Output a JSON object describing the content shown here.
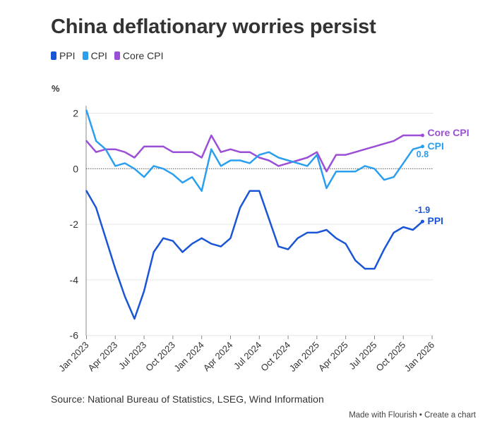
{
  "title": "China deflationary worries persist",
  "unit_label": "%",
  "source": "Source: National Bureau of Statistics, LSEG, Wind Information",
  "credit": {
    "made_with": "Made with Flourish",
    "separator": " • ",
    "create": "Create a chart"
  },
  "colors": {
    "PPI": "#1a55d6",
    "CPI": "#2b9fef",
    "Core CPI": "#9b4fd8",
    "grid": "#e6e6e6",
    "zero": "#555555"
  },
  "chart_data": {
    "type": "line",
    "title": "China deflationary worries persist",
    "ylabel": "%",
    "ylim": [
      -6,
      2.5
    ],
    "yticks": [
      2,
      0,
      -2,
      -4,
      -6
    ],
    "x_start": "Jan 2023",
    "x_ticks": [
      "Jan 2023",
      "Apr 2023",
      "Jul 2023",
      "Oct 2023",
      "Jan 2024",
      "Apr 2024",
      "Jul 2024",
      "Oct 2024",
      "Jan 2025",
      "Apr 2025",
      "Jul 2025",
      "Oct 2025",
      "Jan 2026"
    ],
    "legend_position": "top-left",
    "series": [
      {
        "name": "PPI",
        "end_label": "PPI",
        "last_value_label": "-1.9",
        "values": [
          -0.8,
          -1.4,
          -2.5,
          -3.6,
          -4.6,
          -5.4,
          -4.4,
          -3.0,
          -2.5,
          -2.6,
          -3.0,
          -2.7,
          -2.5,
          -2.7,
          -2.8,
          -2.5,
          -1.4,
          -0.8,
          -0.8,
          -1.8,
          -2.8,
          -2.9,
          -2.5,
          -2.3,
          -2.3,
          -2.2,
          -2.5,
          -2.7,
          -3.3,
          -3.6,
          -3.6,
          -2.9,
          -2.3,
          -2.1,
          -2.2,
          -1.9
        ]
      },
      {
        "name": "CPI",
        "end_label": "CPI",
        "last_value_label": "0.8",
        "values": [
          2.1,
          1.0,
          0.7,
          0.1,
          0.2,
          0.0,
          -0.3,
          0.1,
          0.0,
          -0.2,
          -0.5,
          -0.3,
          -0.8,
          0.7,
          0.1,
          0.3,
          0.3,
          0.2,
          0.5,
          0.6,
          0.4,
          0.3,
          0.2,
          0.1,
          0.5,
          -0.7,
          -0.1,
          -0.1,
          -0.1,
          0.1,
          0.0,
          -0.4,
          -0.3,
          0.2,
          0.7,
          0.8
        ]
      },
      {
        "name": "Core CPI",
        "end_label": "Core CPI",
        "values": [
          1.0,
          0.6,
          0.7,
          0.7,
          0.6,
          0.4,
          0.8,
          0.8,
          0.8,
          0.6,
          0.6,
          0.6,
          0.4,
          1.2,
          0.6,
          0.7,
          0.6,
          0.6,
          0.4,
          0.3,
          0.1,
          0.2,
          0.3,
          0.4,
          0.6,
          -0.1,
          0.5,
          0.5,
          0.6,
          0.7,
          0.8,
          0.9,
          1.0,
          1.2,
          1.2,
          1.2
        ]
      }
    ]
  }
}
